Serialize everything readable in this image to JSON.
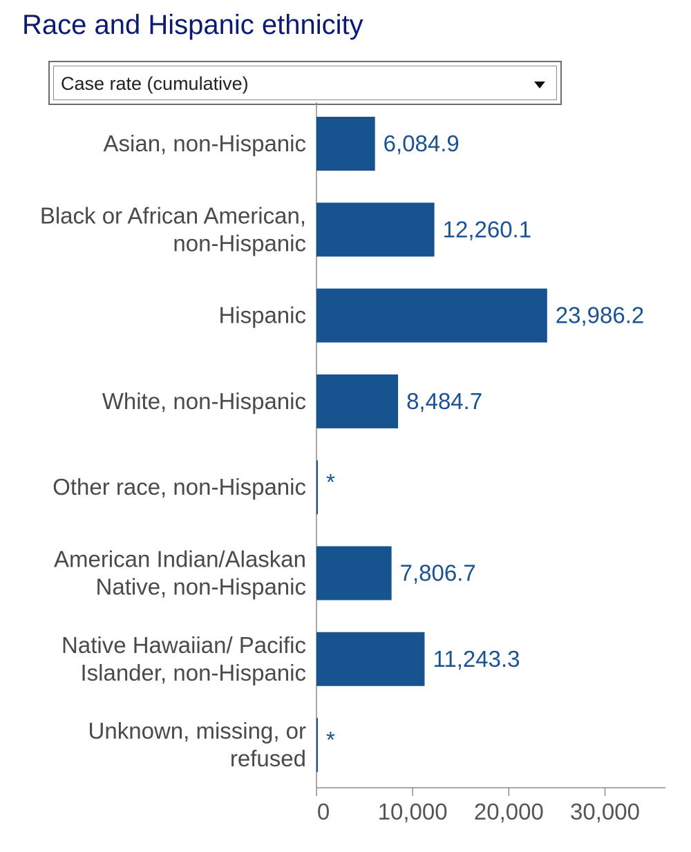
{
  "header": {
    "title": "Race and Hispanic ethnicity"
  },
  "metric_select": {
    "selected": "Case rate (cumulative)",
    "icon": "chevron-down-icon"
  },
  "colors": {
    "bar": "#17548f",
    "value_text": "#1a5293",
    "title": "#0c1a72"
  },
  "chart_data": {
    "type": "bar",
    "orientation": "horizontal",
    "title": "",
    "xlabel": "",
    "ylabel": "",
    "xlim": [
      0,
      36500
    ],
    "x_ticks": [
      0,
      10000,
      20000,
      30000
    ],
    "x_tick_labels": [
      "0",
      "10,000",
      "20,000",
      "30,000"
    ],
    "grid": false,
    "categories": [
      [
        "Asian, non-Hispanic"
      ],
      [
        "Black or African American,",
        "non-Hispanic"
      ],
      [
        "Hispanic"
      ],
      [
        "White, non-Hispanic"
      ],
      [
        "Other race, non-Hispanic"
      ],
      [
        "American Indian/Alaskan",
        "Native, non-Hispanic"
      ],
      [
        "Native Hawaiian/ Pacific",
        "Islander, non-Hispanic"
      ],
      [
        "Unknown, missing, or",
        "refused"
      ]
    ],
    "values": [
      6084.9,
      12260.1,
      23986.2,
      8484.7,
      0,
      7806.7,
      11243.3,
      0
    ],
    "value_labels": [
      "6,084.9",
      "12,260.1",
      "23,986.2",
      "8,484.7",
      "*",
      "7,806.7",
      "11,243.3",
      "*"
    ]
  }
}
